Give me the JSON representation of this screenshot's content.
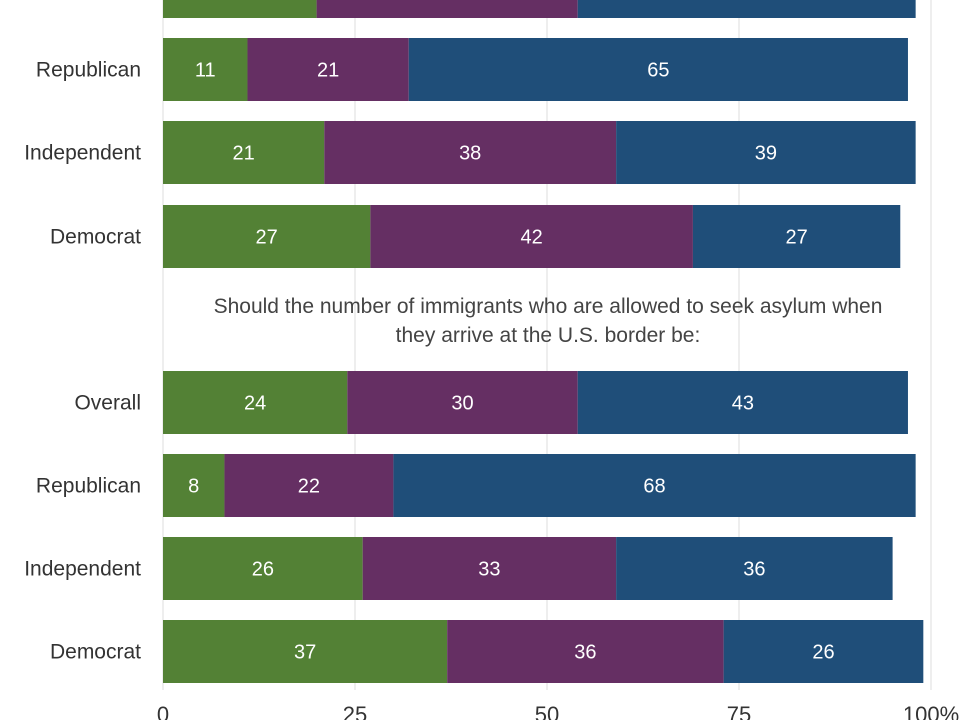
{
  "chart_data": {
    "type": "bar",
    "orientation": "horizontal",
    "stacked": true,
    "xlim": [
      0,
      100
    ],
    "x_ticks": [
      {
        "value": 0,
        "label": "0"
      },
      {
        "value": 25,
        "label": "25"
      },
      {
        "value": 50,
        "label": "50"
      },
      {
        "value": 75,
        "label": "75"
      },
      {
        "value": 100,
        "label": "100%"
      }
    ],
    "grid": true,
    "series_colors": [
      "#538135",
      "#652f63",
      "#1f4e79"
    ],
    "panels": [
      {
        "title": "",
        "rows": [
          {
            "label": "",
            "values": [
              20,
              34,
              44
            ],
            "show_values": false,
            "partial": true
          },
          {
            "label": "Republican",
            "values": [
              11,
              21,
              65
            ],
            "show_values": true
          },
          {
            "label": "Independent",
            "values": [
              21,
              38,
              39
            ],
            "show_values": true
          },
          {
            "label": "Democrat",
            "values": [
              27,
              42,
              27
            ],
            "show_values": true
          }
        ]
      },
      {
        "title": "Should the number of immigrants who are allowed to seek asylum when they arrive at the U.S. border be:",
        "title_lines": [
          "Should the number of immigrants who are allowed to seek asylum when",
          "they arrive at the U.S. border be:"
        ],
        "rows": [
          {
            "label": "Overall",
            "values": [
              24,
              30,
              43
            ],
            "show_values": true
          },
          {
            "label": "Republican",
            "values": [
              8,
              22,
              68
            ],
            "show_values": true
          },
          {
            "label": "Independent",
            "values": [
              26,
              33,
              36
            ],
            "show_values": true
          },
          {
            "label": "Democrat",
            "values": [
              37,
              36,
              26
            ],
            "show_values": true
          }
        ]
      }
    ]
  }
}
